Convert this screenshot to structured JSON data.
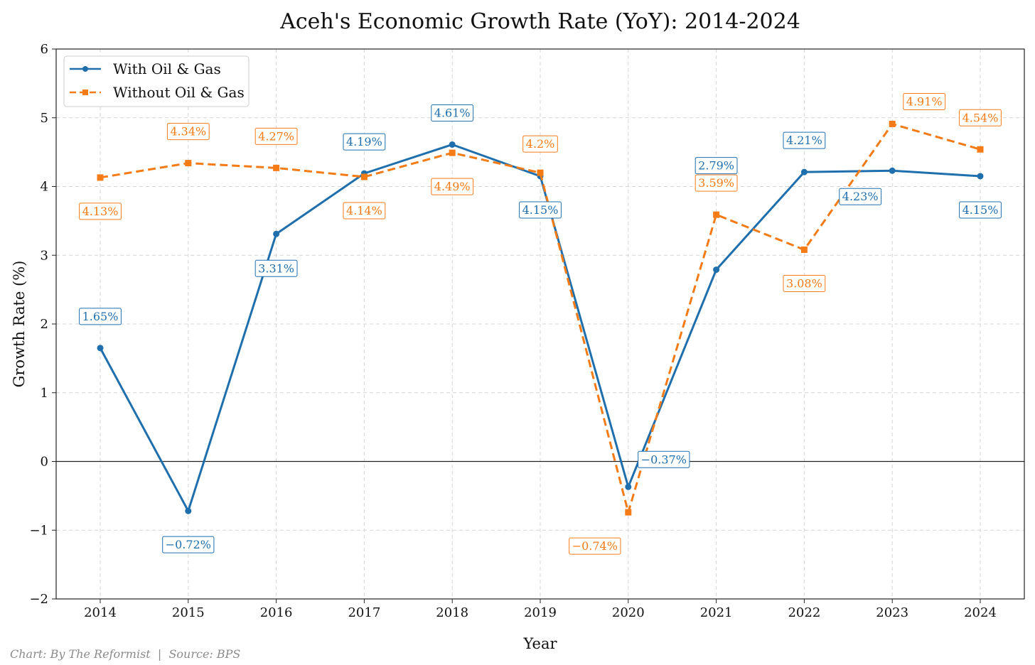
{
  "chart_data": {
    "type": "line",
    "title": "Aceh's Economic Growth Rate (YoY): 2014-2024",
    "xlabel": "Year",
    "ylabel": "Growth Rate (%)",
    "x": [
      "2014",
      "2015",
      "2016",
      "2017",
      "2018",
      "2019",
      "2020",
      "2021",
      "2022",
      "2023",
      "2024"
    ],
    "ylim": [
      -2,
      6
    ],
    "yticks": [
      "−2",
      "−1",
      "0",
      "1",
      "2",
      "3",
      "4",
      "5",
      "6"
    ],
    "grid": true,
    "zero_line": true,
    "legend_position": "top-left",
    "series": [
      {
        "name": "With Oil & Gas",
        "color": "#1f6fad",
        "style": "solid",
        "marker": "circle",
        "values": [
          1.65,
          -0.72,
          3.31,
          4.19,
          4.61,
          4.15,
          -0.37,
          2.79,
          4.21,
          4.23,
          4.15
        ],
        "labels": [
          "1.65%",
          "−0.72%",
          "3.31%",
          "4.19%",
          "4.61%",
          "4.15%",
          "−0.37%",
          "2.79%",
          "4.21%",
          "4.23%",
          "4.15%"
        ]
      },
      {
        "name": "Without Oil & Gas",
        "color": "#f47b16",
        "style": "dashed",
        "marker": "square",
        "values": [
          4.13,
          4.34,
          4.27,
          4.14,
          4.49,
          4.2,
          -0.74,
          3.59,
          3.08,
          4.91,
          4.54
        ],
        "labels": [
          "4.13%",
          "4.34%",
          "4.27%",
          "4.14%",
          "4.49%",
          "4.2%",
          "−0.74%",
          "3.59%",
          "3.08%",
          "4.91%",
          "4.54%"
        ]
      }
    ]
  },
  "footer": {
    "credit": "Chart: By The Reformist  |  Source: BPS"
  }
}
